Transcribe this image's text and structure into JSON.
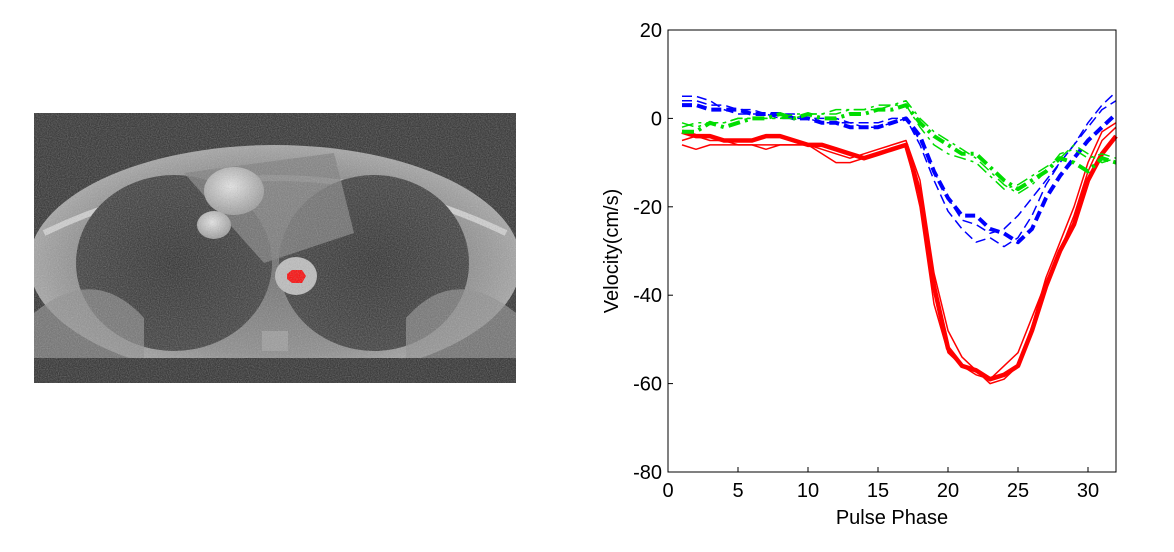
{
  "figure": {
    "left_image": "axial MRI slice with red-highlighted region of interest",
    "colors": {
      "background": "#ffffff",
      "red": "#ff0000",
      "blue": "#0000ff",
      "green": "#00dd00",
      "axis": "#000000"
    }
  },
  "chart_data": {
    "type": "line",
    "title": "",
    "xlabel": "Pulse Phase",
    "ylabel": "Velocity(cm/s)",
    "xlim": [
      0,
      32
    ],
    "ylim": [
      -80,
      20
    ],
    "xticks": [
      0,
      5,
      10,
      15,
      20,
      25,
      30
    ],
    "yticks": [
      20,
      0,
      -20,
      -40,
      -60,
      -80
    ],
    "grid": false,
    "legend": "none",
    "x": [
      1,
      2,
      3,
      4,
      5,
      6,
      7,
      8,
      9,
      10,
      11,
      12,
      13,
      14,
      15,
      16,
      17,
      18,
      19,
      20,
      21,
      22,
      23,
      24,
      25,
      26,
      27,
      28,
      29,
      30,
      31,
      32
    ],
    "series": [
      {
        "name": "red-thick",
        "color": "#ff0000",
        "style": "solid",
        "width": 4.5,
        "values": [
          -3,
          -4,
          -4,
          -5,
          -5,
          -5,
          -4,
          -4,
          -5,
          -6,
          -6,
          -7,
          -8,
          -9,
          -8,
          -7,
          -6,
          -17,
          -38,
          -52,
          -56,
          -57,
          -59,
          -58,
          -56,
          -48,
          -38,
          -30,
          -24,
          -14,
          -8,
          -4
        ]
      },
      {
        "name": "red-thin-1",
        "color": "#ff0000",
        "style": "solid",
        "width": 1.5,
        "values": [
          -6,
          -7,
          -6,
          -6,
          -6,
          -6,
          -6,
          -6,
          -6,
          -6,
          -8,
          -10,
          -10,
          -9,
          -8,
          -7,
          -6,
          -20,
          -42,
          -53,
          -56,
          -58,
          -59,
          -56,
          -53,
          -45,
          -37,
          -30,
          -22,
          -12,
          -5,
          -2
        ]
      },
      {
        "name": "red-thin-2",
        "color": "#ff0000",
        "style": "solid",
        "width": 1.5,
        "values": [
          -5,
          -4,
          -5,
          -5,
          -6,
          -6,
          -7,
          -6,
          -6,
          -6,
          -7,
          -8,
          -9,
          -8,
          -7,
          -6,
          -5,
          -14,
          -35,
          -48,
          -54,
          -57,
          -60,
          -59,
          -56,
          -47,
          -36,
          -28,
          -20,
          -10,
          -3,
          -1
        ]
      },
      {
        "name": "blue-thick-dashed",
        "color": "#0000ff",
        "style": "dashed",
        "width": 4,
        "values": [
          3,
          3,
          2,
          2,
          2,
          1,
          1,
          1,
          0,
          0,
          -1,
          -1,
          -2,
          -2,
          -2,
          -1,
          0,
          -4,
          -12,
          -18,
          -22,
          -22,
          -25,
          -26,
          -28,
          -25,
          -18,
          -13,
          -9,
          -5,
          -2,
          1
        ]
      },
      {
        "name": "blue-thin-dashed-1",
        "color": "#0000ff",
        "style": "dashed",
        "width": 1.5,
        "values": [
          5,
          5,
          4,
          2,
          1,
          1,
          1,
          0,
          0,
          0,
          -1,
          -1,
          -1,
          -2,
          -2,
          -1,
          0,
          -6,
          -14,
          -21,
          -25,
          -28,
          -27,
          -29,
          -27,
          -22,
          -15,
          -10,
          -6,
          -1,
          3,
          6
        ]
      },
      {
        "name": "blue-thin-dashed-2",
        "color": "#0000ff",
        "style": "dashed",
        "width": 1.5,
        "values": [
          4,
          4,
          3,
          3,
          2,
          2,
          1,
          1,
          1,
          0,
          0,
          0,
          -1,
          -1,
          -1,
          0,
          0,
          -5,
          -12,
          -18,
          -23,
          -24,
          -26,
          -25,
          -22,
          -18,
          -14,
          -10,
          -6,
          -2,
          2,
          4
        ]
      },
      {
        "name": "green-thick-dashdot",
        "color": "#00dd00",
        "style": "dashdot",
        "width": 4,
        "values": [
          -3,
          -3,
          -1,
          -2,
          -1,
          0,
          0,
          1,
          0,
          1,
          0,
          0,
          1,
          1,
          2,
          2,
          3,
          -1,
          -4,
          -6,
          -8,
          -8,
          -11,
          -14,
          -16,
          -14,
          -12,
          -9,
          -10,
          -12,
          -9,
          -10
        ]
      },
      {
        "name": "green-thin-dashdot-1",
        "color": "#00dd00",
        "style": "dashdot",
        "width": 1.5,
        "values": [
          -2,
          -1,
          -1,
          -1,
          0,
          0,
          0,
          0,
          1,
          1,
          1,
          2,
          2,
          2,
          3,
          3,
          4,
          0,
          -3,
          -5,
          -7,
          -9,
          -12,
          -15,
          -17,
          -15,
          -12,
          -8,
          -7,
          -9,
          -8,
          -9
        ]
      },
      {
        "name": "green-thin-dashdot-2",
        "color": "#00dd00",
        "style": "dashdot",
        "width": 1.5,
        "values": [
          -1,
          -2,
          -1,
          -1,
          0,
          0,
          0,
          0,
          0,
          1,
          1,
          1,
          2,
          2,
          2,
          3,
          3,
          -2,
          -6,
          -8,
          -9,
          -10,
          -13,
          -16,
          -15,
          -13,
          -11,
          -9,
          -6,
          -8,
          -10,
          -9
        ]
      }
    ]
  }
}
